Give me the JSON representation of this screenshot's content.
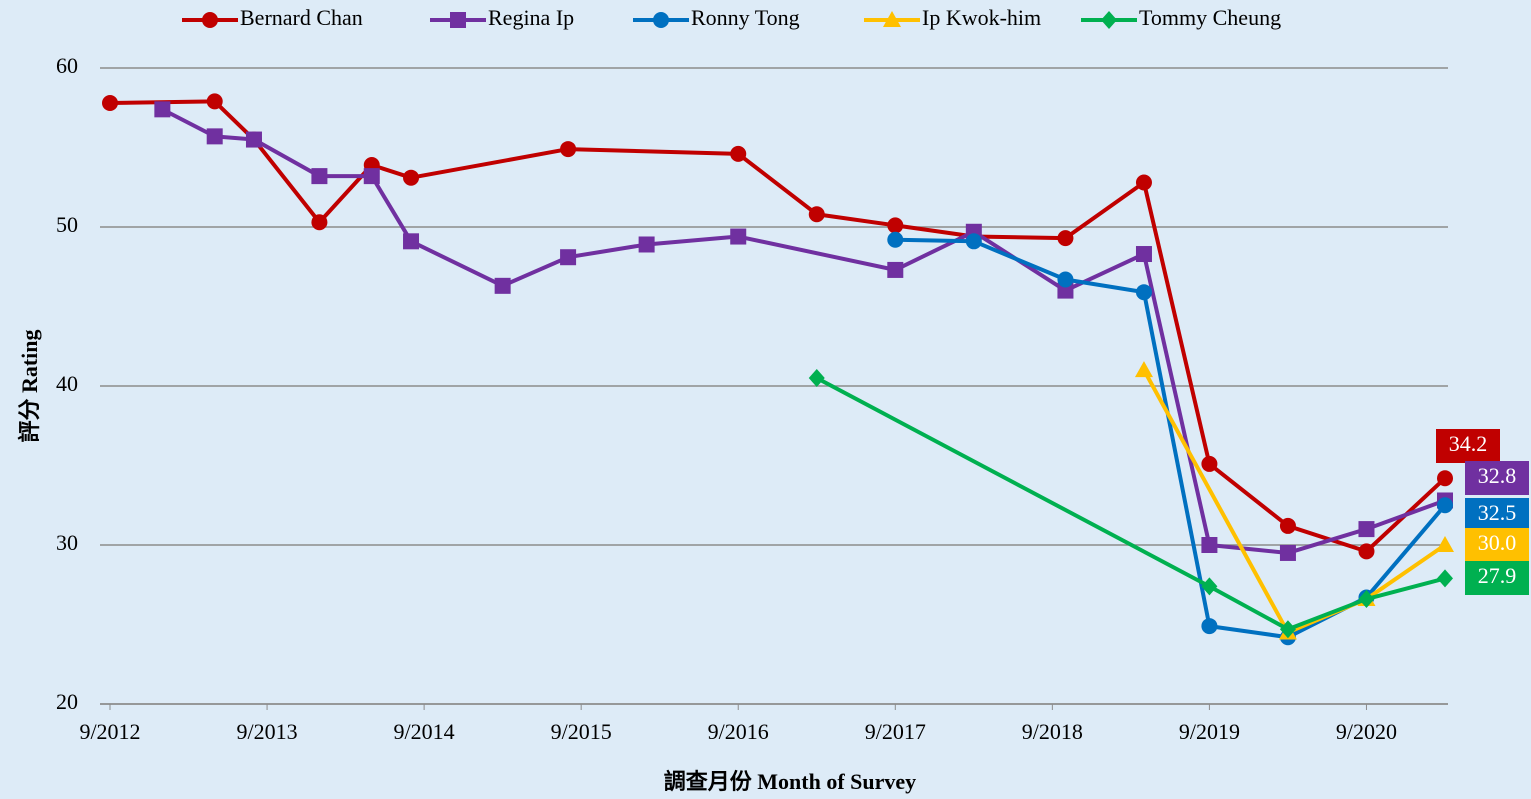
{
  "chart_data": {
    "type": "line",
    "x_label": "調查月份 Month of Survey",
    "y_label": "評分 Rating",
    "xlim": [
      "9/2012",
      "3/2021"
    ],
    "xticks": [
      "9/2012",
      "9/2013",
      "9/2014",
      "9/2015",
      "9/2016",
      "9/2017",
      "9/2018",
      "9/2019",
      "9/2020"
    ],
    "ylim": [
      20,
      60
    ],
    "yticks": [
      20,
      30,
      40,
      50,
      60
    ],
    "grid": true,
    "legend": "top",
    "series": [
      {
        "name": "Bernard Chan",
        "color": "#c00000",
        "marker": "circle",
        "x": [
          "9/2012",
          "5/2013",
          "8/2013",
          "1/2014",
          "5/2014",
          "8/2014",
          "8/2015",
          "9/2016",
          "3/2017",
          "9/2017",
          "3/2018",
          "10/2018",
          "4/2019",
          "9/2019",
          "3/2020",
          "9/2020",
          "3/2021"
        ],
        "values": [
          57.8,
          57.9,
          55.5,
          50.3,
          53.9,
          53.1,
          54.9,
          54.6,
          50.8,
          50.1,
          49.4,
          49.3,
          52.8,
          35.1,
          31.2,
          29.6,
          34.2
        ],
        "value_labels": [
          null,
          null,
          null,
          null,
          null,
          null,
          null,
          null,
          null,
          null,
          null,
          null,
          null,
          null,
          null,
          null,
          "34.2"
        ]
      },
      {
        "name": "Regina Ip",
        "color": "#7030a0",
        "marker": "square",
        "x": [
          "1/2013",
          "5/2013",
          "8/2013",
          "1/2014",
          "5/2014",
          "8/2014",
          "3/2015",
          "8/2015",
          "2/2016",
          "9/2016",
          "9/2017",
          "3/2018",
          "10/2018",
          "4/2019",
          "9/2019",
          "3/2020",
          "9/2020",
          "3/2021"
        ],
        "values": [
          57.4,
          55.7,
          55.5,
          53.2,
          53.2,
          49.1,
          46.3,
          48.1,
          48.9,
          49.4,
          47.3,
          49.7,
          46.0,
          48.3,
          30.0,
          29.5,
          31.0,
          32.8
        ],
        "value_labels": [
          null,
          null,
          null,
          null,
          null,
          null,
          null,
          null,
          null,
          null,
          null,
          null,
          null,
          null,
          null,
          null,
          null,
          "32.8"
        ]
      },
      {
        "name": "Ronny Tong",
        "color": "#0070c0",
        "marker": "circle",
        "x": [
          "9/2017",
          "3/2018",
          "10/2018",
          "4/2019",
          "9/2019",
          "3/2020",
          "9/2020",
          "3/2021"
        ],
        "values": [
          49.2,
          49.1,
          46.7,
          45.9,
          24.9,
          24.2,
          26.7,
          32.5
        ],
        "value_labels": [
          null,
          null,
          null,
          null,
          null,
          null,
          null,
          "32.5"
        ]
      },
      {
        "name": "Ip Kwok-him",
        "color": "#ffc000",
        "marker": "triangle",
        "x": [
          "4/2019",
          "3/2020",
          "9/2020",
          "3/2021"
        ],
        "values": [
          41.0,
          24.5,
          26.6,
          30.0
        ],
        "value_labels": [
          null,
          null,
          null,
          "30.0"
        ]
      },
      {
        "name": "Tommy Cheung",
        "color": "#00b050",
        "marker": "diamond",
        "x": [
          "3/2017",
          "9/2019",
          "3/2020",
          "9/2020",
          "3/2021"
        ],
        "values": [
          40.5,
          27.4,
          24.7,
          26.6,
          27.9
        ],
        "value_labels": [
          null,
          null,
          null,
          null,
          "27.9"
        ]
      }
    ]
  }
}
